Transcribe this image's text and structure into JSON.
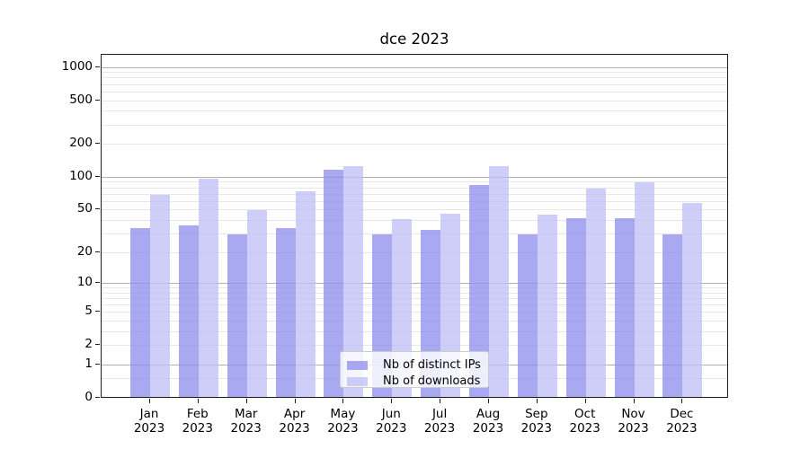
{
  "chart_data": {
    "type": "bar",
    "title": "dce 2023",
    "categories": [
      "Jan",
      "Feb",
      "Mar",
      "Apr",
      "May",
      "Jun",
      "Jul",
      "Aug",
      "Sep",
      "Oct",
      "Nov",
      "Dec"
    ],
    "x_year_label": "2023",
    "series": [
      {
        "name": "Nb of distinct IPs",
        "color": "rgba(140,140,236,0.75)",
        "color_hex_on_white": "#a9a9f1",
        "values": [
          32,
          34,
          28,
          32,
          110,
          28,
          31,
          81,
          28,
          40,
          40,
          28
        ]
      },
      {
        "name": "Nb of downloads",
        "color": "rgba(190,190,245,0.75)",
        "color_hex_on_white": "#d9d9f7",
        "values": [
          65,
          92,
          47,
          70,
          120,
          39,
          44,
          120,
          43,
          74,
          85,
          55
        ]
      }
    ],
    "yscale": "log10(value+1)",
    "yticks": [
      1000,
      500,
      200,
      100,
      50,
      20,
      10,
      5,
      2,
      1,
      0
    ],
    "major_grid_values": [
      1000,
      100,
      10,
      1
    ],
    "ylim": [
      0,
      1300
    ],
    "grid": "on",
    "legend_position": "lower center",
    "grid_major_color": "#b0b0b0",
    "grid_minor_color": "#e7e7e7"
  }
}
